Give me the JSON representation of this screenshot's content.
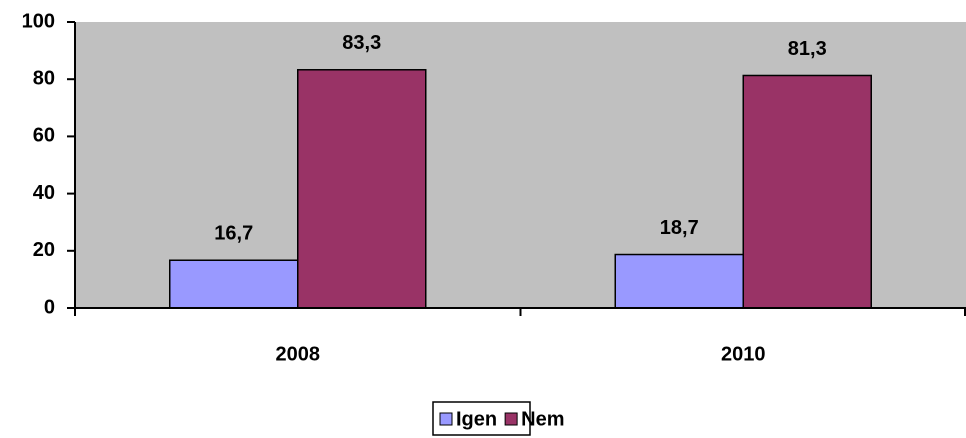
{
  "chart_data": {
    "type": "bar",
    "categories": [
      "2008",
      "2010"
    ],
    "series": [
      {
        "name": "Igen",
        "color": "#9999ff",
        "values": [
          16.7,
          18.7
        ],
        "value_labels": [
          "16,7",
          "18,7"
        ]
      },
      {
        "name": "Nem",
        "color": "#993366",
        "values": [
          83.3,
          81.3
        ],
        "value_labels": [
          "83,3",
          "81,3"
        ]
      }
    ],
    "ylim": [
      0,
      100
    ],
    "yticks": [
      0,
      20,
      40,
      60,
      80,
      100
    ],
    "grid": false,
    "legend": "bottom"
  }
}
